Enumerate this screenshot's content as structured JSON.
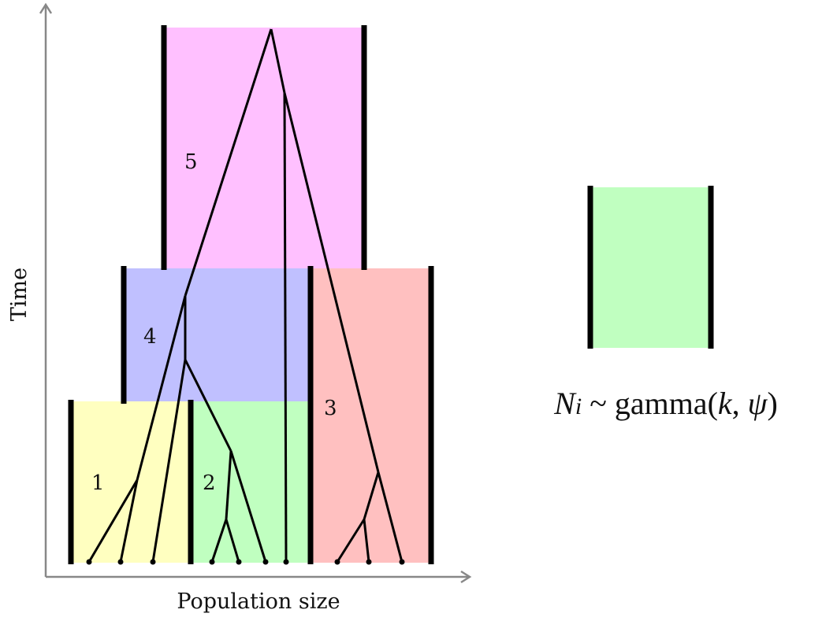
{
  "axes": {
    "x_label": "Population size",
    "y_label": "Time"
  },
  "populations": [
    {
      "id": "1",
      "label": "1",
      "color": "#ffffc0"
    },
    {
      "id": "2",
      "label": "2",
      "color": "#c0ffc0"
    },
    {
      "id": "3",
      "label": "3",
      "color": "#ffc0c0"
    },
    {
      "id": "4",
      "label": "4",
      "color": "#c0c0ff"
    },
    {
      "id": "5",
      "label": "5",
      "color": "#ffc0ff"
    }
  ],
  "prior_box": {
    "color": "#c0ffc0",
    "formula": {
      "var": "N",
      "sub": "i",
      "tilde": " ~ ",
      "func": "gamma(",
      "arg1": "k",
      "comma": ", ",
      "arg2": "ψ",
      "close": ")"
    }
  },
  "colors": {
    "axis": "#888888",
    "bar": "#000000",
    "tree": "#000000"
  }
}
